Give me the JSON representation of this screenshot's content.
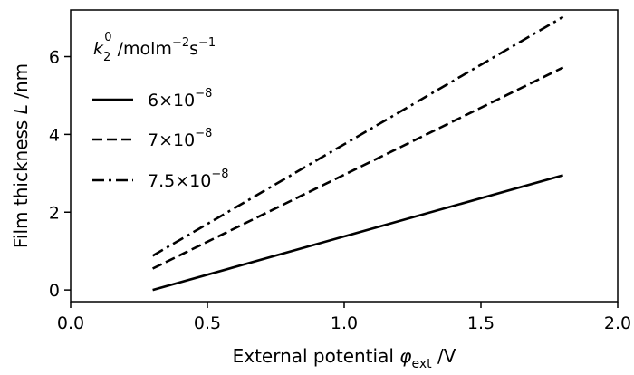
{
  "chart_data": {
    "type": "line",
    "xlabel": {
      "prefix": "External potential ",
      "symbol": "φ",
      "subscript": "ext",
      "suffix": " /V"
    },
    "ylabel": {
      "prefix": "Film thickness ",
      "symbol": "L",
      "suffix": " /nm"
    },
    "xlim": [
      0.0,
      2.0
    ],
    "ylim": [
      -0.3,
      7.2
    ],
    "xticks": [
      0.0,
      0.5,
      1.0,
      1.5,
      2.0
    ],
    "xtick_labels": [
      "0.0",
      "0.5",
      "1.0",
      "1.5",
      "2.0"
    ],
    "yticks": [
      0,
      2,
      4,
      6
    ],
    "ytick_labels": [
      "0",
      "2",
      "4",
      "6"
    ],
    "grid": false,
    "legend": {
      "placement": "top-left",
      "title": {
        "symbol": "k",
        "subscript": "2",
        "superscript": "0",
        "unit_prefix": " /molm",
        "unit_exp1": "−2",
        "unit_mid": "s",
        "unit_exp2": "−1"
      }
    },
    "series": [
      {
        "label_base": "6×10",
        "label_exp": "−8",
        "dash": "solid",
        "x": [
          0.3,
          1.8
        ],
        "y": [
          0.0,
          2.95
        ]
      },
      {
        "label_base": "7×10",
        "label_exp": "−8",
        "dash": "dashed",
        "x": [
          0.3,
          1.8
        ],
        "y": [
          0.55,
          5.72
        ]
      },
      {
        "label_base": "7.5×10",
        "label_exp": "−8",
        "dash": "dashdot",
        "x": [
          0.3,
          1.8
        ],
        "y": [
          0.88,
          7.02
        ]
      }
    ]
  }
}
